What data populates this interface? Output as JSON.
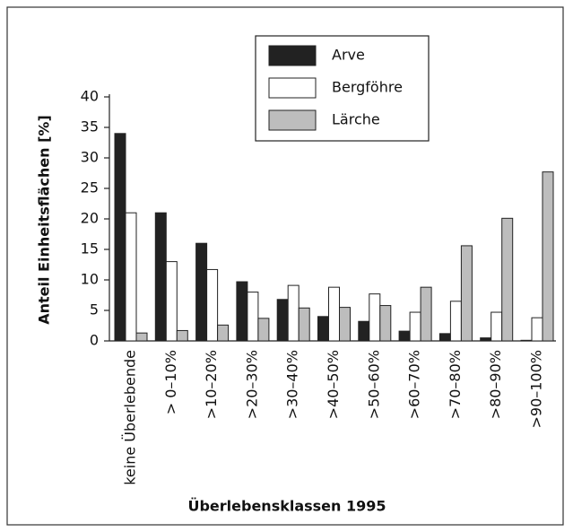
{
  "chart_data": {
    "type": "bar",
    "x_label": "Überlebensklassen 1995",
    "y_label": "Anteil Einheitsflächen [%]",
    "categories": [
      "keine Überlebende",
      "> 0–10%",
      ">10–20%",
      ">20–30%",
      ">30–40%",
      ">40–50%",
      ">50–60%",
      ">60–70%",
      ">70–80%",
      ">80–90%",
      ">90–100%"
    ],
    "series": [
      {
        "name": "Arve",
        "color": "#222222",
        "values": [
          34,
          21,
          16,
          9.7,
          6.8,
          4,
          3.2,
          1.6,
          1.2,
          0.5,
          0.1
        ]
      },
      {
        "name": "Bergföhre",
        "color": "#ffffff",
        "values": [
          21,
          13,
          11.7,
          8,
          9.1,
          8.8,
          7.7,
          4.7,
          6.5,
          4.7,
          3.8
        ]
      },
      {
        "name": "Lärche",
        "color": "#bdbdbd",
        "values": [
          1.3,
          1.7,
          2.6,
          3.7,
          5.4,
          5.5,
          5.8,
          8.8,
          15.6,
          20.1,
          27.7
        ]
      }
    ],
    "ylim": [
      0,
      40
    ],
    "yticks": [
      0,
      5,
      10,
      15,
      20,
      25,
      30,
      35,
      40
    ],
    "grid": false,
    "legend": "top"
  }
}
